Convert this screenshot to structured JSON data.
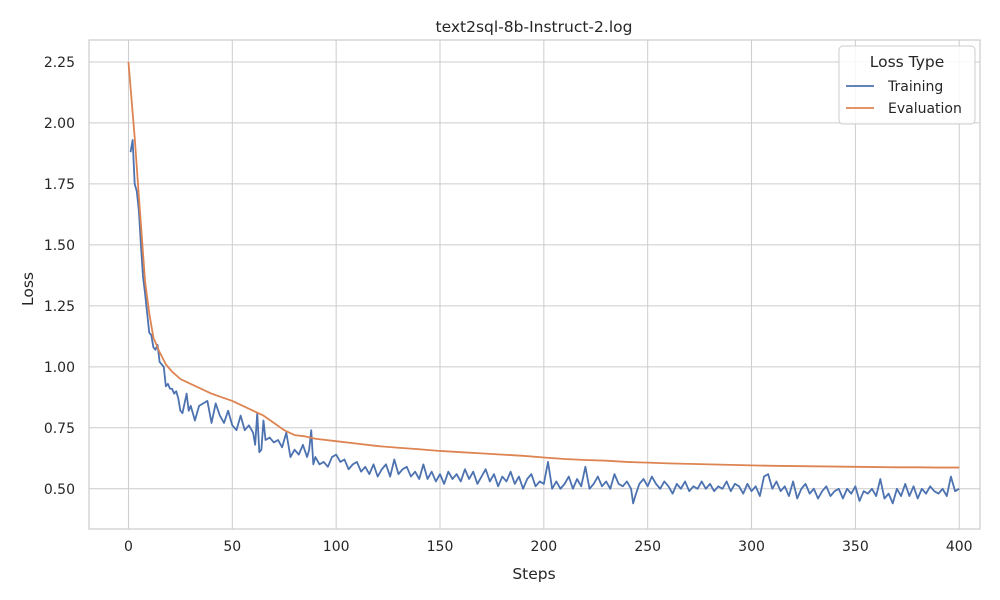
{
  "chart_data": {
    "type": "line",
    "title": "text2sql-8b-Instruct-2.log",
    "xlabel": "Steps",
    "ylabel": "Loss",
    "xlim": [
      -19,
      410
    ],
    "ylim": [
      0.335,
      2.34
    ],
    "x_ticks": [
      0,
      50,
      100,
      150,
      200,
      250,
      300,
      350,
      400
    ],
    "y_ticks": [
      0.5,
      0.75,
      1.0,
      1.25,
      1.5,
      1.75,
      2.0,
      2.25
    ],
    "y_tick_labels": [
      "0.50",
      "0.75",
      "1.00",
      "1.25",
      "1.50",
      "1.75",
      "2.00",
      "2.25"
    ],
    "grid": true,
    "legend": {
      "title": "Loss Type",
      "placement": "top-right"
    },
    "series": [
      {
        "name": "Training",
        "color": "#4c72b0",
        "points": [
          [
            1,
            1.88
          ],
          [
            2,
            1.93
          ],
          [
            3,
            1.75
          ],
          [
            4,
            1.72
          ],
          [
            5,
            1.64
          ],
          [
            6,
            1.5
          ],
          [
            7,
            1.37
          ],
          [
            8,
            1.3
          ],
          [
            9,
            1.22
          ],
          [
            10,
            1.14
          ],
          [
            11,
            1.13
          ],
          [
            12,
            1.08
          ],
          [
            13,
            1.07
          ],
          [
            14,
            1.09
          ],
          [
            15,
            1.02
          ],
          [
            16,
            1.01
          ],
          [
            17,
            1.0
          ],
          [
            18,
            0.92
          ],
          [
            19,
            0.93
          ],
          [
            20,
            0.91
          ],
          [
            21,
            0.91
          ],
          [
            22,
            0.89
          ],
          [
            23,
            0.9
          ],
          [
            24,
            0.87
          ],
          [
            25,
            0.82
          ],
          [
            26,
            0.81
          ],
          [
            27,
            0.85
          ],
          [
            28,
            0.89
          ],
          [
            29,
            0.82
          ],
          [
            30,
            0.84
          ],
          [
            32,
            0.78
          ],
          [
            34,
            0.84
          ],
          [
            36,
            0.85
          ],
          [
            38,
            0.86
          ],
          [
            40,
            0.77
          ],
          [
            42,
            0.85
          ],
          [
            44,
            0.8
          ],
          [
            46,
            0.77
          ],
          [
            48,
            0.82
          ],
          [
            50,
            0.76
          ],
          [
            52,
            0.74
          ],
          [
            54,
            0.8
          ],
          [
            56,
            0.74
          ],
          [
            58,
            0.76
          ],
          [
            60,
            0.73
          ],
          [
            61,
            0.68
          ],
          [
            62,
            0.81
          ],
          [
            63,
            0.65
          ],
          [
            64,
            0.66
          ],
          [
            65,
            0.78
          ],
          [
            66,
            0.7
          ],
          [
            68,
            0.71
          ],
          [
            70,
            0.69
          ],
          [
            72,
            0.7
          ],
          [
            74,
            0.67
          ],
          [
            76,
            0.73
          ],
          [
            78,
            0.63
          ],
          [
            80,
            0.66
          ],
          [
            82,
            0.64
          ],
          [
            84,
            0.68
          ],
          [
            86,
            0.63
          ],
          [
            87,
            0.66
          ],
          [
            88,
            0.74
          ],
          [
            89,
            0.6
          ],
          [
            90,
            0.63
          ],
          [
            92,
            0.6
          ],
          [
            94,
            0.61
          ],
          [
            96,
            0.59
          ],
          [
            98,
            0.63
          ],
          [
            100,
            0.64
          ],
          [
            102,
            0.61
          ],
          [
            104,
            0.62
          ],
          [
            106,
            0.58
          ],
          [
            108,
            0.6
          ],
          [
            110,
            0.61
          ],
          [
            112,
            0.57
          ],
          [
            114,
            0.59
          ],
          [
            116,
            0.56
          ],
          [
            118,
            0.6
          ],
          [
            120,
            0.55
          ],
          [
            122,
            0.58
          ],
          [
            124,
            0.6
          ],
          [
            126,
            0.55
          ],
          [
            128,
            0.62
          ],
          [
            130,
            0.56
          ],
          [
            132,
            0.58
          ],
          [
            134,
            0.59
          ],
          [
            136,
            0.55
          ],
          [
            138,
            0.57
          ],
          [
            140,
            0.54
          ],
          [
            142,
            0.6
          ],
          [
            144,
            0.54
          ],
          [
            146,
            0.57
          ],
          [
            148,
            0.53
          ],
          [
            150,
            0.56
          ],
          [
            152,
            0.52
          ],
          [
            154,
            0.57
          ],
          [
            156,
            0.54
          ],
          [
            158,
            0.56
          ],
          [
            160,
            0.53
          ],
          [
            162,
            0.58
          ],
          [
            164,
            0.54
          ],
          [
            166,
            0.57
          ],
          [
            168,
            0.52
          ],
          [
            170,
            0.55
          ],
          [
            172,
            0.58
          ],
          [
            174,
            0.53
          ],
          [
            176,
            0.56
          ],
          [
            178,
            0.51
          ],
          [
            180,
            0.55
          ],
          [
            182,
            0.53
          ],
          [
            184,
            0.57
          ],
          [
            186,
            0.52
          ],
          [
            188,
            0.55
          ],
          [
            190,
            0.5
          ],
          [
            192,
            0.54
          ],
          [
            194,
            0.56
          ],
          [
            196,
            0.51
          ],
          [
            198,
            0.53
          ],
          [
            200,
            0.52
          ],
          [
            202,
            0.61
          ],
          [
            204,
            0.5
          ],
          [
            206,
            0.53
          ],
          [
            208,
            0.5
          ],
          [
            210,
            0.52
          ],
          [
            212,
            0.55
          ],
          [
            214,
            0.5
          ],
          [
            216,
            0.54
          ],
          [
            218,
            0.51
          ],
          [
            220,
            0.59
          ],
          [
            222,
            0.5
          ],
          [
            224,
            0.52
          ],
          [
            226,
            0.55
          ],
          [
            228,
            0.51
          ],
          [
            230,
            0.53
          ],
          [
            232,
            0.5
          ],
          [
            234,
            0.56
          ],
          [
            236,
            0.52
          ],
          [
            238,
            0.51
          ],
          [
            240,
            0.53
          ],
          [
            242,
            0.5
          ],
          [
            243,
            0.44
          ],
          [
            244,
            0.47
          ],
          [
            246,
            0.52
          ],
          [
            248,
            0.54
          ],
          [
            250,
            0.51
          ],
          [
            252,
            0.55
          ],
          [
            254,
            0.52
          ],
          [
            256,
            0.5
          ],
          [
            258,
            0.53
          ],
          [
            260,
            0.51
          ],
          [
            262,
            0.48
          ],
          [
            264,
            0.52
          ],
          [
            266,
            0.5
          ],
          [
            268,
            0.53
          ],
          [
            270,
            0.49
          ],
          [
            272,
            0.51
          ],
          [
            274,
            0.5
          ],
          [
            276,
            0.53
          ],
          [
            278,
            0.5
          ],
          [
            280,
            0.52
          ],
          [
            282,
            0.49
          ],
          [
            284,
            0.51
          ],
          [
            286,
            0.5
          ],
          [
            288,
            0.53
          ],
          [
            290,
            0.49
          ],
          [
            292,
            0.52
          ],
          [
            294,
            0.51
          ],
          [
            296,
            0.48
          ],
          [
            298,
            0.52
          ],
          [
            300,
            0.49
          ],
          [
            302,
            0.51
          ],
          [
            304,
            0.47
          ],
          [
            306,
            0.55
          ],
          [
            308,
            0.56
          ],
          [
            310,
            0.5
          ],
          [
            312,
            0.53
          ],
          [
            314,
            0.49
          ],
          [
            316,
            0.51
          ],
          [
            318,
            0.47
          ],
          [
            320,
            0.53
          ],
          [
            322,
            0.46
          ],
          [
            324,
            0.5
          ],
          [
            326,
            0.52
          ],
          [
            328,
            0.48
          ],
          [
            330,
            0.5
          ],
          [
            332,
            0.46
          ],
          [
            334,
            0.49
          ],
          [
            336,
            0.51
          ],
          [
            338,
            0.47
          ],
          [
            340,
            0.49
          ],
          [
            342,
            0.5
          ],
          [
            344,
            0.46
          ],
          [
            346,
            0.5
          ],
          [
            348,
            0.48
          ],
          [
            350,
            0.51
          ],
          [
            352,
            0.45
          ],
          [
            354,
            0.49
          ],
          [
            356,
            0.48
          ],
          [
            358,
            0.5
          ],
          [
            360,
            0.47
          ],
          [
            362,
            0.54
          ],
          [
            364,
            0.46
          ],
          [
            366,
            0.48
          ],
          [
            368,
            0.44
          ],
          [
            370,
            0.5
          ],
          [
            372,
            0.47
          ],
          [
            374,
            0.52
          ],
          [
            376,
            0.47
          ],
          [
            378,
            0.51
          ],
          [
            380,
            0.46
          ],
          [
            382,
            0.5
          ],
          [
            384,
            0.48
          ],
          [
            386,
            0.51
          ],
          [
            388,
            0.49
          ],
          [
            390,
            0.48
          ],
          [
            392,
            0.5
          ],
          [
            394,
            0.47
          ],
          [
            396,
            0.55
          ],
          [
            398,
            0.49
          ],
          [
            400,
            0.5
          ]
        ]
      },
      {
        "name": "Evaluation",
        "color": "#dd8452",
        "points": [
          [
            0,
            2.25
          ],
          [
            3,
            1.94
          ],
          [
            5,
            1.7
          ],
          [
            8,
            1.35
          ],
          [
            10,
            1.22
          ],
          [
            12,
            1.12
          ],
          [
            15,
            1.06
          ],
          [
            18,
            1.01
          ],
          [
            21,
            0.98
          ],
          [
            25,
            0.95
          ],
          [
            30,
            0.93
          ],
          [
            35,
            0.91
          ],
          [
            40,
            0.89
          ],
          [
            45,
            0.875
          ],
          [
            50,
            0.86
          ],
          [
            55,
            0.84
          ],
          [
            60,
            0.82
          ],
          [
            65,
            0.8
          ],
          [
            70,
            0.77
          ],
          [
            75,
            0.74
          ],
          [
            80,
            0.72
          ],
          [
            85,
            0.715
          ],
          [
            90,
            0.705
          ],
          [
            100,
            0.695
          ],
          [
            110,
            0.685
          ],
          [
            120,
            0.675
          ],
          [
            130,
            0.668
          ],
          [
            140,
            0.662
          ],
          [
            150,
            0.655
          ],
          [
            160,
            0.65
          ],
          [
            170,
            0.645
          ],
          [
            180,
            0.64
          ],
          [
            190,
            0.635
          ],
          [
            200,
            0.628
          ],
          [
            210,
            0.622
          ],
          [
            220,
            0.618
          ],
          [
            230,
            0.615
          ],
          [
            240,
            0.61
          ],
          [
            250,
            0.607
          ],
          [
            260,
            0.604
          ],
          [
            270,
            0.602
          ],
          [
            280,
            0.6
          ],
          [
            290,
            0.598
          ],
          [
            300,
            0.596
          ],
          [
            310,
            0.594
          ],
          [
            320,
            0.593
          ],
          [
            330,
            0.592
          ],
          [
            340,
            0.591
          ],
          [
            350,
            0.59
          ],
          [
            360,
            0.589
          ],
          [
            370,
            0.588
          ],
          [
            380,
            0.588
          ],
          [
            390,
            0.587
          ],
          [
            400,
            0.587
          ]
        ]
      }
    ]
  }
}
